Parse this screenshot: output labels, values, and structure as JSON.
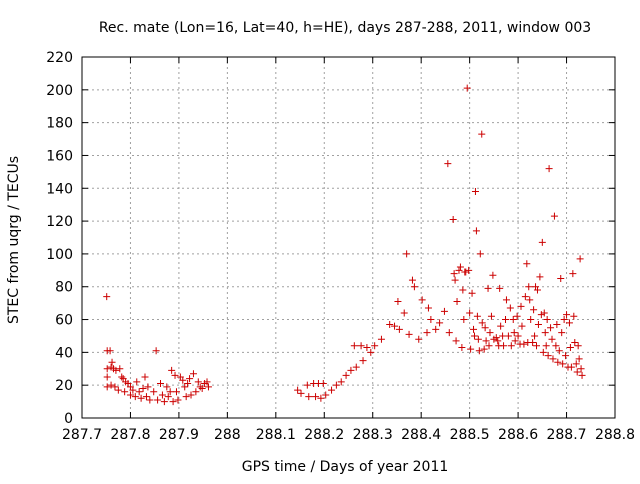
{
  "chart_data": {
    "type": "scatter",
    "title": "Rec. mate (Lon=16, Lat=40, h=HE), days 287-288, 2011, window 003",
    "xlabel": "GPS time / Days of year 2011",
    "ylabel": "STEC from uqrg / TECUs",
    "xlim": [
      287.7,
      288.8
    ],
    "ylim": [
      0,
      220
    ],
    "xticks": [
      "287.7",
      "287.8",
      "287.9",
      "288",
      "288.1",
      "288.2",
      "288.3",
      "288.4",
      "288.5",
      "288.6",
      "288.7",
      "288.8"
    ],
    "yticks": [
      "0",
      "20",
      "40",
      "60",
      "80",
      "100",
      "120",
      "140",
      "160",
      "180",
      "200",
      "220"
    ],
    "grid": true,
    "marker": "+",
    "colors": {
      "series": "#cc0000",
      "grid": "#a0a0a0",
      "axis": "#000000"
    },
    "series": [
      {
        "points": [
          [
            287.751,
            74
          ],
          [
            287.752,
            41
          ],
          [
            287.752,
            30
          ],
          [
            287.752,
            25
          ],
          [
            287.752,
            19
          ],
          [
            287.758,
            41
          ],
          [
            287.76,
            31
          ],
          [
            287.76,
            20
          ],
          [
            287.762,
            34
          ],
          [
            287.765,
            30
          ],
          [
            287.768,
            19
          ],
          [
            287.77,
            29
          ],
          [
            287.775,
            17
          ],
          [
            287.778,
            30
          ],
          [
            287.782,
            25
          ],
          [
            287.785,
            24
          ],
          [
            287.788,
            16
          ],
          [
            287.79,
            22
          ],
          [
            287.795,
            21
          ],
          [
            287.8,
            14
          ],
          [
            287.8,
            19
          ],
          [
            287.805,
            17
          ],
          [
            287.81,
            13
          ],
          [
            287.813,
            22
          ],
          [
            287.818,
            16
          ],
          [
            287.822,
            12
          ],
          [
            287.826,
            18
          ],
          [
            287.83,
            25
          ],
          [
            287.833,
            13
          ],
          [
            287.836,
            19
          ],
          [
            287.84,
            11
          ],
          [
            287.848,
            16
          ],
          [
            287.853,
            41
          ],
          [
            287.856,
            11
          ],
          [
            287.862,
            21
          ],
          [
            287.866,
            14
          ],
          [
            287.87,
            10
          ],
          [
            287.875,
            19
          ],
          [
            287.878,
            13
          ],
          [
            287.882,
            16
          ],
          [
            287.885,
            29
          ],
          [
            287.888,
            10
          ],
          [
            287.892,
            26
          ],
          [
            287.895,
            16
          ],
          [
            287.898,
            11
          ],
          [
            287.903,
            25
          ],
          [
            287.908,
            23
          ],
          [
            287.912,
            19
          ],
          [
            287.915,
            13
          ],
          [
            287.918,
            21
          ],
          [
            287.922,
            24
          ],
          [
            287.925,
            14
          ],
          [
            287.93,
            27
          ],
          [
            287.935,
            16
          ],
          [
            287.94,
            22
          ],
          [
            287.944,
            19
          ],
          [
            287.948,
            18
          ],
          [
            287.953,
            21
          ],
          [
            287.958,
            22
          ],
          [
            287.961,
            19
          ],
          [
            288.145,
            17
          ],
          [
            288.152,
            15
          ],
          [
            288.165,
            20
          ],
          [
            288.168,
            13
          ],
          [
            288.178,
            21
          ],
          [
            288.182,
            13
          ],
          [
            288.188,
            21
          ],
          [
            288.193,
            12
          ],
          [
            288.198,
            21
          ],
          [
            288.203,
            14
          ],
          [
            288.215,
            17
          ],
          [
            288.225,
            20
          ],
          [
            288.235,
            22
          ],
          [
            288.245,
            26
          ],
          [
            288.255,
            29
          ],
          [
            288.262,
            44
          ],
          [
            288.266,
            31
          ],
          [
            288.276,
            44
          ],
          [
            288.28,
            35
          ],
          [
            288.288,
            43
          ],
          [
            288.296,
            40
          ],
          [
            288.304,
            44
          ],
          [
            288.318,
            48
          ],
          [
            288.335,
            57
          ],
          [
            288.345,
            56
          ],
          [
            288.352,
            71
          ],
          [
            288.355,
            54
          ],
          [
            288.365,
            64
          ],
          [
            288.37,
            100
          ],
          [
            288.375,
            51
          ],
          [
            288.382,
            84
          ],
          [
            288.386,
            80
          ],
          [
            288.395,
            48
          ],
          [
            288.402,
            72
          ],
          [
            288.412,
            52
          ],
          [
            288.415,
            67
          ],
          [
            288.42,
            60
          ],
          [
            288.43,
            54
          ],
          [
            288.438,
            58
          ],
          [
            288.448,
            65
          ],
          [
            288.455,
            155
          ],
          [
            288.458,
            52
          ],
          [
            288.466,
            121
          ],
          [
            288.468,
            88
          ],
          [
            288.47,
            84
          ],
          [
            288.472,
            47
          ],
          [
            288.474,
            71
          ],
          [
            288.478,
            90
          ],
          [
            288.481,
            92
          ],
          [
            288.484,
            43
          ],
          [
            288.486,
            78
          ],
          [
            288.488,
            60
          ],
          [
            288.49,
            89
          ],
          [
            288.492,
            89
          ],
          [
            288.495,
            201
          ],
          [
            288.498,
            90
          ],
          [
            288.5,
            64
          ],
          [
            288.502,
            42
          ],
          [
            288.505,
            76
          ],
          [
            288.508,
            54
          ],
          [
            288.51,
            50
          ],
          [
            288.512,
            138
          ],
          [
            288.514,
            114
          ],
          [
            288.516,
            62
          ],
          [
            288.518,
            48
          ],
          [
            288.52,
            41
          ],
          [
            288.522,
            100
          ],
          [
            288.525,
            173
          ],
          [
            288.526,
            58
          ],
          [
            288.53,
            42
          ],
          [
            288.532,
            55
          ],
          [
            288.534,
            47
          ],
          [
            288.538,
            79
          ],
          [
            288.54,
            44
          ],
          [
            288.542,
            52
          ],
          [
            288.545,
            62
          ],
          [
            288.548,
            87
          ],
          [
            288.55,
            48
          ],
          [
            288.555,
            49
          ],
          [
            288.558,
            47
          ],
          [
            288.56,
            44
          ],
          [
            288.562,
            79
          ],
          [
            288.564,
            56
          ],
          [
            288.568,
            50
          ],
          [
            288.57,
            44
          ],
          [
            288.574,
            60
          ],
          [
            288.576,
            72
          ],
          [
            288.58,
            50
          ],
          [
            288.584,
            67
          ],
          [
            288.586,
            44
          ],
          [
            288.59,
            60
          ],
          [
            288.592,
            52
          ],
          [
            288.594,
            47
          ],
          [
            288.598,
            62
          ],
          [
            288.6,
            50
          ],
          [
            288.604,
            45
          ],
          [
            288.606,
            68
          ],
          [
            288.608,
            56
          ],
          [
            288.612,
            45
          ],
          [
            288.615,
            74
          ],
          [
            288.618,
            94
          ],
          [
            288.62,
            46
          ],
          [
            288.622,
            80
          ],
          [
            288.624,
            72
          ],
          [
            288.626,
            60
          ],
          [
            288.63,
            46
          ],
          [
            288.632,
            66
          ],
          [
            288.634,
            50
          ],
          [
            288.636,
            80
          ],
          [
            288.638,
            44
          ],
          [
            288.64,
            78
          ],
          [
            288.642,
            57
          ],
          [
            288.645,
            86
          ],
          [
            288.648,
            63
          ],
          [
            288.65,
            107
          ],
          [
            288.652,
            40
          ],
          [
            288.654,
            64
          ],
          [
            288.656,
            52
          ],
          [
            288.658,
            44
          ],
          [
            288.66,
            60
          ],
          [
            288.662,
            38
          ],
          [
            288.664,
            152
          ],
          [
            288.667,
            55
          ],
          [
            288.67,
            48
          ],
          [
            288.672,
            36
          ],
          [
            288.675,
            123
          ],
          [
            288.678,
            44
          ],
          [
            288.68,
            57
          ],
          [
            288.682,
            34
          ],
          [
            288.685,
            41
          ],
          [
            288.688,
            85
          ],
          [
            288.69,
            52
          ],
          [
            288.692,
            33
          ],
          [
            288.695,
            60
          ],
          [
            288.698,
            38
          ],
          [
            288.7,
            63
          ],
          [
            288.703,
            31
          ],
          [
            288.706,
            58
          ],
          [
            288.708,
            43
          ],
          [
            288.71,
            31
          ],
          [
            288.713,
            88
          ],
          [
            288.715,
            62
          ],
          [
            288.717,
            46
          ],
          [
            288.72,
            33
          ],
          [
            288.722,
            28
          ],
          [
            288.724,
            44
          ],
          [
            288.726,
            36
          ],
          [
            288.728,
            97
          ],
          [
            288.73,
            30
          ],
          [
            288.732,
            26
          ]
        ]
      }
    ]
  }
}
